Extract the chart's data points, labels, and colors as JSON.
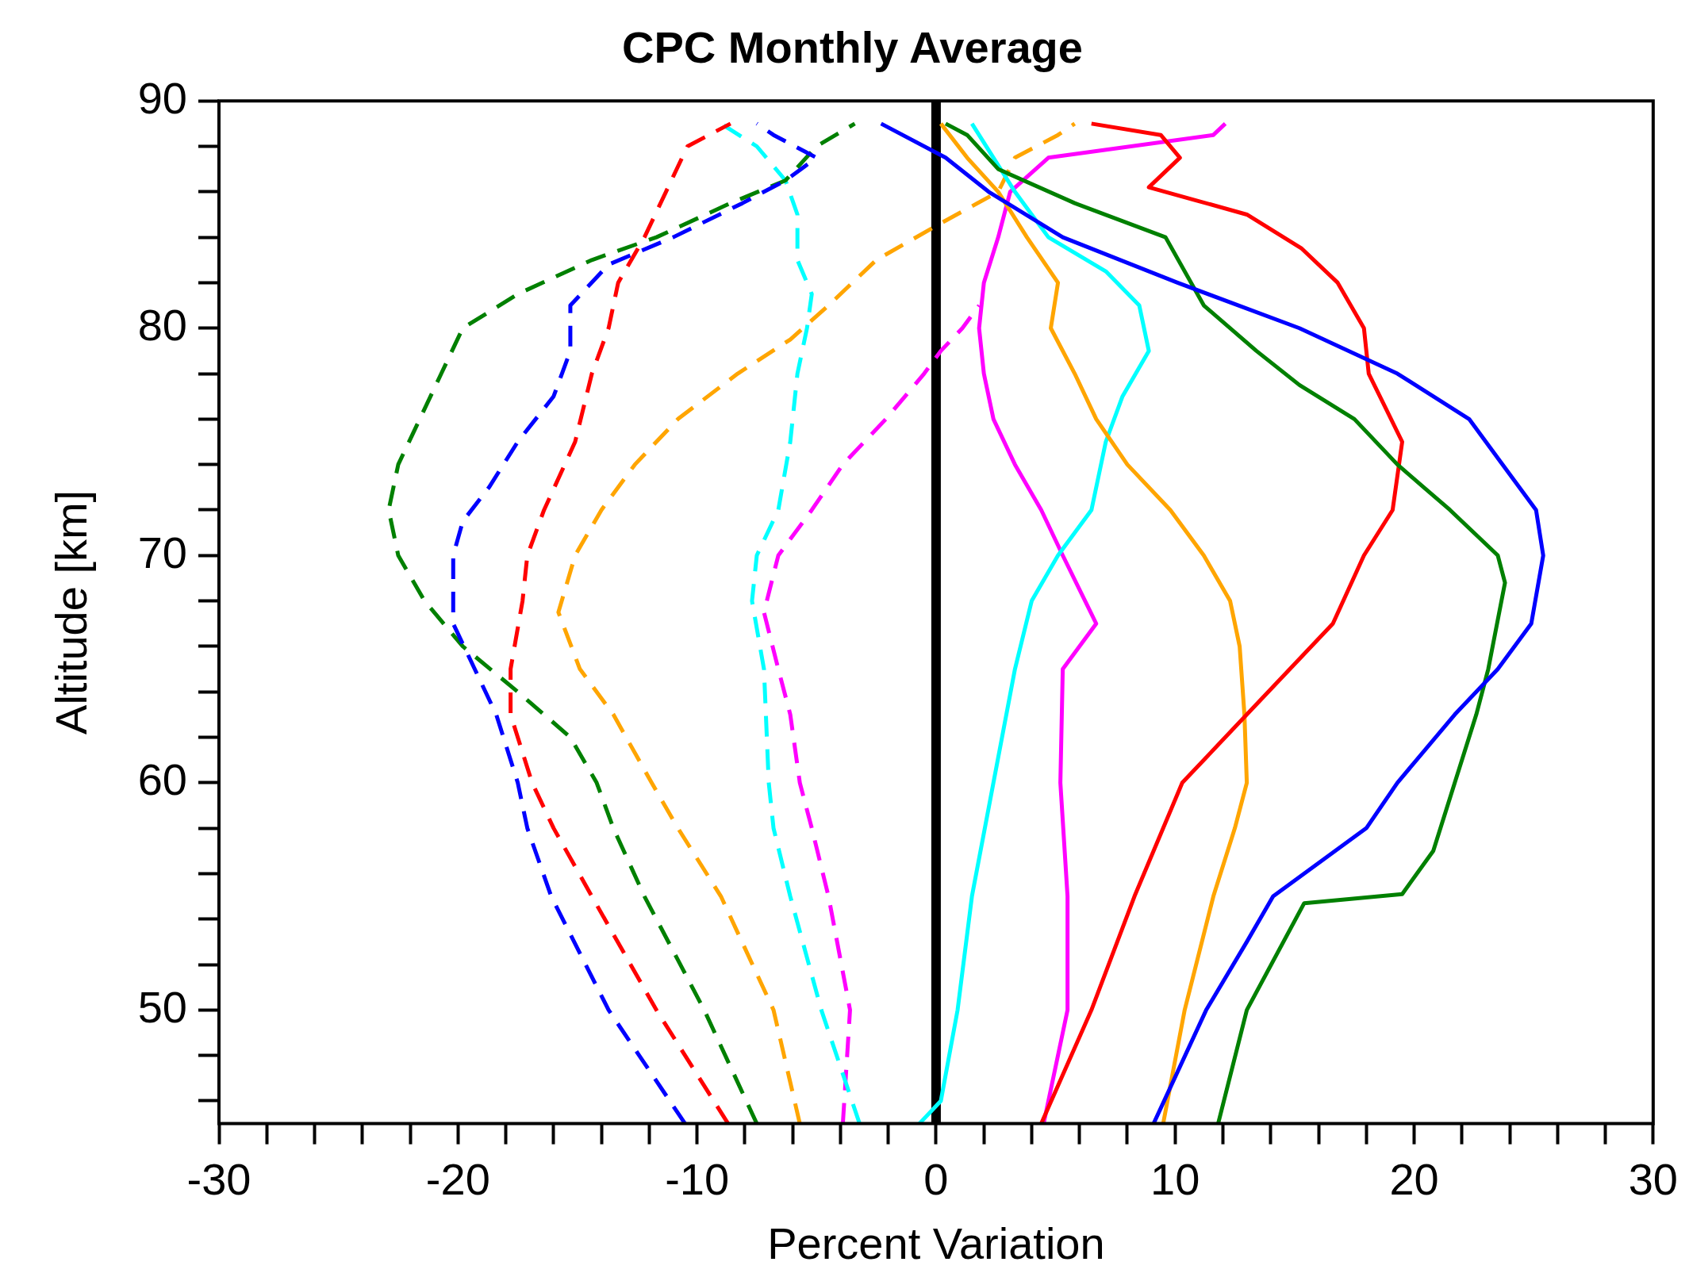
{
  "chart_data": {
    "type": "line",
    "title": "CPC Monthly Average",
    "xlabel": "Percent Variation",
    "ylabel": "Altitude [km]",
    "xlim": [
      -30,
      30
    ],
    "ylim": [
      45,
      90
    ],
    "xticks": [
      -30,
      -20,
      -10,
      0,
      10,
      20,
      30
    ],
    "yticks": [
      50,
      60,
      70,
      80,
      90
    ],
    "grid": false,
    "legend": false,
    "marker": "none",
    "ref_lines": [
      {
        "axis": "x",
        "value": 0,
        "color": "#000000"
      }
    ],
    "series": [
      {
        "color": "#0000ff",
        "line_style": "solid",
        "x": [
          9.1,
          11.3,
          13,
          14.1,
          18,
          19.3,
          21.7,
          23.5,
          24.9,
          25.4,
          25.1,
          23.7,
          22.3,
          19.3,
          15.2,
          10.1,
          5.3,
          2.2,
          0.4,
          -2.3
        ],
        "values": [
          45,
          50,
          53,
          55,
          58,
          60,
          63,
          65,
          67,
          70,
          72,
          74,
          76,
          78,
          80,
          82,
          84,
          86,
          87.5,
          89
        ]
      },
      {
        "color": "#008000",
        "line_style": "solid",
        "x": [
          11.8,
          13,
          15.4,
          19.5,
          20.8,
          21.7,
          22.6,
          23.1,
          23.8,
          23.5,
          21.5,
          20.4,
          19.3,
          17.5,
          15.2,
          13.4,
          11.2,
          9.6,
          5.8,
          2.6,
          1.3,
          0.4
        ],
        "values": [
          45,
          50,
          54.7,
          55.1,
          57,
          60,
          63,
          65,
          68.8,
          70,
          72,
          73,
          74,
          76,
          77.5,
          79,
          81,
          84,
          85.5,
          87,
          88.5,
          89
        ]
      },
      {
        "color": "#ff0000",
        "line_style": "solid",
        "x": [
          4.4,
          6.5,
          8.3,
          10.3,
          13,
          14.8,
          16.6,
          17.9,
          19.1,
          19.5,
          18.1,
          17.9,
          16.8,
          15.3,
          13,
          8.9,
          10.2,
          9.4,
          6.5
        ],
        "values": [
          45,
          50,
          55,
          60,
          63,
          65,
          67,
          70,
          72,
          75,
          78,
          80,
          82,
          83.5,
          85,
          86.2,
          87.5,
          88.5,
          89
        ]
      },
      {
        "color": "#ffa500",
        "line_style": "solid",
        "x": [
          9.5,
          10.4,
          11.6,
          12.5,
          13,
          12.9,
          12.7,
          12.3,
          11.2,
          9.8,
          8,
          6.7,
          5.8,
          4.8,
          5.1,
          3.8,
          2.6,
          1.3,
          0.2
        ],
        "values": [
          45,
          50,
          55,
          58,
          60,
          63,
          66,
          68,
          70,
          72,
          74,
          76,
          78,
          80,
          82,
          84,
          86,
          87.5,
          89
        ]
      },
      {
        "color": "#00ffff",
        "line_style": "solid",
        "x": [
          -0.7,
          0.2,
          0.9,
          1.5,
          2.4,
          3.3,
          4,
          5.1,
          6.5,
          7.1,
          7.8,
          8.9,
          8.5,
          7.1,
          4.7,
          3.3,
          2.4,
          1.5
        ],
        "values": [
          45,
          46,
          50,
          55,
          60,
          65,
          68,
          70,
          72,
          75,
          77,
          79,
          81,
          82.5,
          84,
          86,
          87.5,
          89
        ]
      },
      {
        "color": "#ff00ff",
        "line_style": "solid",
        "x": [
          4.5,
          5.5,
          5.5,
          5.2,
          5.3,
          6.7,
          5.3,
          4.4,
          3.3,
          2.4,
          2,
          1.8,
          2,
          2.6,
          3.1,
          4.7,
          11.6,
          12.1
        ],
        "values": [
          45,
          50,
          55,
          60,
          65,
          67,
          70,
          72,
          74,
          76,
          78,
          80,
          82,
          84,
          86,
          87.5,
          88.5,
          89
        ]
      },
      {
        "color": "#0000ff",
        "line_style": "dashed",
        "x": [
          -10.5,
          -13.7,
          -16.1,
          -17.1,
          -17.5,
          -18.4,
          -19.3,
          -20.2,
          -20.2,
          -19.8,
          -18.7,
          -17.5,
          -16,
          -15.3,
          -15.3,
          -13.7,
          -11,
          -8.1,
          -6.3,
          -5,
          -6.8,
          -7.5
        ],
        "values": [
          45,
          50,
          55,
          58,
          60,
          63,
          65,
          67,
          70,
          71.5,
          73,
          75,
          77,
          79,
          81,
          82.8,
          84,
          85.5,
          86.5,
          87.5,
          88.5,
          89
        ]
      },
      {
        "color": "#ff0000",
        "line_style": "dashed",
        "x": [
          -8.7,
          -11.7,
          -14.4,
          -16,
          -16.9,
          -17.8,
          -17.8,
          -17.3,
          -17.1,
          -16.4,
          -15.1,
          -14.4,
          -13.7,
          -13.3,
          -12.2,
          -11.3,
          -10.4,
          -8.6
        ],
        "values": [
          45,
          50,
          55,
          58,
          60,
          63,
          65,
          68,
          70,
          72,
          75,
          78,
          80,
          82,
          84,
          86,
          88,
          89
        ]
      },
      {
        "color": "#008000",
        "line_style": "dashed",
        "x": [
          -7.5,
          -9.7,
          -12.2,
          -13.5,
          -14.2,
          -15.3,
          -17.5,
          -19.8,
          -21.4,
          -22.5,
          -22.9,
          -22.5,
          -21.6,
          -20.7,
          -19.8,
          -17.5,
          -14.4,
          -11.7,
          -8.6,
          -6.3,
          -5,
          -3.4
        ],
        "values": [
          45,
          50,
          55,
          58,
          60,
          62,
          64,
          66,
          68,
          70,
          72,
          74,
          76,
          78,
          80,
          81.5,
          83,
          84,
          85.5,
          86.5,
          88,
          89
        ]
      },
      {
        "color": "#ffa500",
        "line_style": "dashed",
        "x": [
          -5.7,
          -6.8,
          -9,
          -10.8,
          -11.9,
          -13.5,
          -14.9,
          -15.8,
          -15.1,
          -14,
          -12.6,
          -10.8,
          -8.3,
          -6.1,
          -4.5,
          -2.5,
          0,
          2.6,
          3.3,
          5.1,
          5.8
        ],
        "values": [
          45,
          50,
          55,
          58,
          60,
          63,
          65,
          67.5,
          70,
          72,
          74,
          76,
          78,
          79.5,
          81,
          83,
          84.5,
          86,
          87.5,
          88.5,
          89
        ]
      },
      {
        "color": "#00ffff",
        "line_style": "dashed",
        "x": [
          -3.2,
          -4.8,
          -6.1,
          -6.8,
          -7,
          -7.2,
          -7.7,
          -7.5,
          -6.6,
          -6.1,
          -5.8,
          -5.4,
          -5.2,
          -5.8,
          -5.8,
          -6.3,
          -7.5,
          -9
        ],
        "values": [
          45,
          50,
          55,
          58,
          60,
          65,
          68,
          70,
          72,
          75,
          78,
          80,
          81.5,
          83,
          85,
          86.5,
          88,
          89
        ]
      },
      {
        "color": "#ff00ff",
        "line_style": "dashed",
        "x": [
          -3.9,
          -3.6,
          -4.5,
          -5.2,
          -5.7,
          -6.1,
          -6.6,
          -7.2,
          -6.6,
          -5.2,
          -3.9,
          -2.1,
          -0.5,
          0.2,
          1.1,
          1.8
        ],
        "values": [
          45,
          50,
          55,
          58,
          60,
          63,
          65,
          67.5,
          70,
          72,
          74,
          76,
          78,
          79,
          80,
          81
        ]
      }
    ]
  }
}
